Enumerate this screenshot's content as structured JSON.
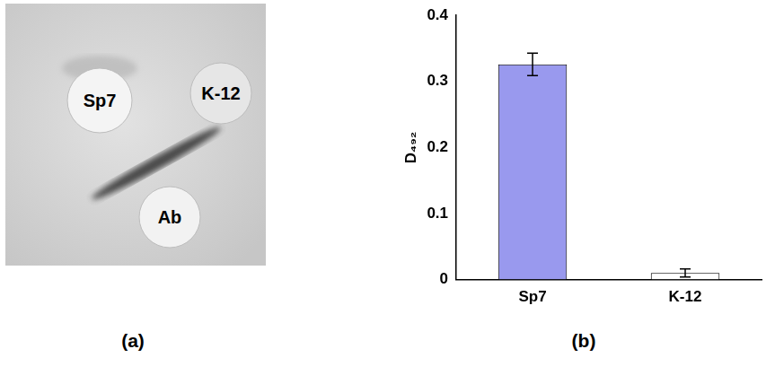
{
  "panels": {
    "a": {
      "label": "(a)",
      "wells": [
        "Sp7",
        "K-12",
        "Ab"
      ]
    },
    "b": {
      "label": "(b)"
    }
  },
  "chart_data": {
    "type": "bar",
    "y_label": "D₄₉₂",
    "categories": [
      "Sp7",
      "K-12"
    ],
    "values": [
      0.326,
      0.01
    ],
    "errors": [
      0.017,
      0.006
    ],
    "colors": [
      "#9999ee",
      "#ffffff"
    ],
    "ylim": [
      0,
      0.4
    ],
    "yticks": [
      0,
      0.1,
      0.2,
      0.3,
      0.4
    ],
    "grid": false
  }
}
